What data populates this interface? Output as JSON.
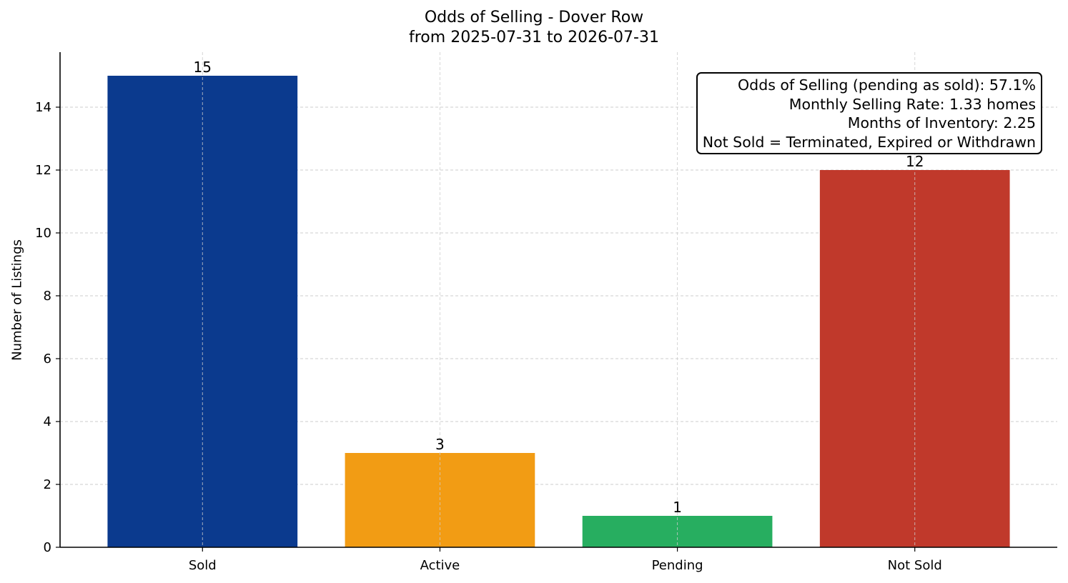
{
  "chart_data": {
    "type": "bar",
    "title": "Odds of Selling - Dover Row",
    "subtitle": "from 2025-07-31 to 2026-07-31",
    "ylabel": "Number of Listings",
    "xlabel": "",
    "categories": [
      "Sold",
      "Active",
      "Pending",
      "Not Sold"
    ],
    "values": [
      15,
      3,
      1,
      12
    ],
    "data_labels": [
      "15",
      "3",
      "1",
      "12"
    ],
    "colors": [
      "#0b3a8e",
      "#f29c14",
      "#27ae60",
      "#c0392b"
    ],
    "ylim": [
      0,
      15.75
    ],
    "yticks": [
      0,
      2,
      4,
      6,
      8,
      10,
      12,
      14
    ],
    "grid": true,
    "annotation_lines": [
      "Odds of Selling (pending as sold): 57.1%",
      "Monthly Selling Rate: 1.33 homes",
      "Months of Inventory: 2.25",
      "Not Sold = Terminated, Expired or Withdrawn"
    ],
    "annotation_placement": "top-right"
  }
}
